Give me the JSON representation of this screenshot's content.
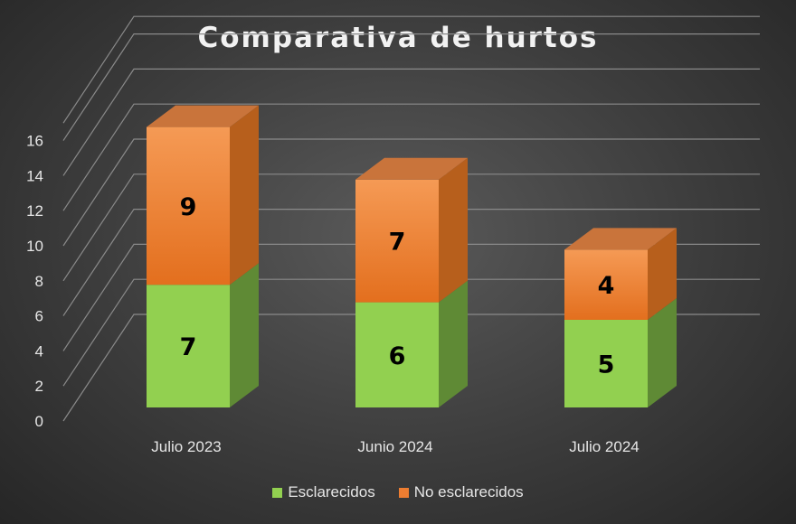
{
  "chart_data": {
    "type": "bar",
    "stacked": true,
    "three_d": true,
    "title": "Comparativa de hurtos",
    "categories": [
      "Julio 2023",
      "Junio 2024",
      "Julio 2024"
    ],
    "series": [
      {
        "name": "Esclarecidos",
        "values": [
          7,
          6,
          5
        ],
        "color": "#92d050"
      },
      {
        "name": "No esclarecidos",
        "values": [
          9,
          7,
          4
        ],
        "color": "#ed7d31"
      }
    ],
    "ylim": [
      0,
      16
    ],
    "yticks": [
      0,
      2,
      4,
      6,
      8,
      10,
      12,
      14,
      16
    ],
    "grid": true,
    "legend_position": "bottom"
  }
}
